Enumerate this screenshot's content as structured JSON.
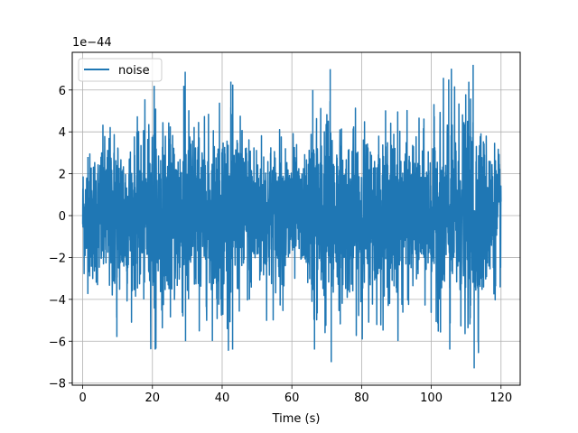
{
  "chart_data": {
    "type": "line",
    "title": "",
    "xlabel": "Time (s)",
    "ylabel": "",
    "y_offset_label": "1e−44",
    "xlim": [
      -3,
      125.5
    ],
    "ylim": [
      -8.1,
      7.8
    ],
    "x_ticks": [
      0,
      20,
      40,
      60,
      80,
      100,
      120
    ],
    "x_tick_labels": [
      "0",
      "20",
      "40",
      "60",
      "80",
      "100",
      "120"
    ],
    "y_ticks": [
      -8,
      -6,
      -4,
      -2,
      0,
      2,
      4,
      6
    ],
    "y_tick_labels": [
      "−8",
      "−6",
      "−4",
      "−2",
      "0",
      "2",
      "4",
      "6"
    ],
    "grid": true,
    "legend": {
      "position": "upper-left",
      "entries": [
        "noise"
      ]
    },
    "series": [
      {
        "name": "noise",
        "color": "#1f77b4",
        "x_range": [
          0,
          120
        ],
        "notable_peaks": [
          {
            "x": 1.5,
            "y": 2.8
          },
          {
            "x": 2.0,
            "y": -2.9
          },
          {
            "x": 9.8,
            "y": -5.8
          },
          {
            "x": 20.5,
            "y": 6.2
          },
          {
            "x": 20.8,
            "y": -6.4
          },
          {
            "x": 29.0,
            "y": 6.2
          },
          {
            "x": 29.5,
            "y": -6.0
          },
          {
            "x": 42.5,
            "y": 6.4
          },
          {
            "x": 43.0,
            "y": -6.4
          },
          {
            "x": 66.0,
            "y": 6.0
          },
          {
            "x": 66.5,
            "y": -6.4
          },
          {
            "x": 71.0,
            "y": 7.0
          },
          {
            "x": 71.3,
            "y": -7.0
          },
          {
            "x": 105.0,
            "y": 6.5
          },
          {
            "x": 105.3,
            "y": -6.4
          },
          {
            "x": 112.0,
            "y": 7.2
          },
          {
            "x": 112.3,
            "y": -7.3
          }
        ],
        "approx_envelope": [
          {
            "x": 0,
            "amp": 2.4
          },
          {
            "x": 5,
            "amp": 3.0
          },
          {
            "x": 10,
            "amp": 3.9
          },
          {
            "x": 15,
            "amp": 3.0
          },
          {
            "x": 20,
            "amp": 4.1
          },
          {
            "x": 25,
            "amp": 3.4
          },
          {
            "x": 30,
            "amp": 4.4
          },
          {
            "x": 35,
            "amp": 3.5
          },
          {
            "x": 40,
            "amp": 4.2
          },
          {
            "x": 45,
            "amp": 3.7
          },
          {
            "x": 50,
            "amp": 3.3
          },
          {
            "x": 55,
            "amp": 3.1
          },
          {
            "x": 60,
            "amp": 3.2
          },
          {
            "x": 63,
            "amp": 1.9
          },
          {
            "x": 66,
            "amp": 4.0
          },
          {
            "x": 70,
            "amp": 4.6
          },
          {
            "x": 75,
            "amp": 3.3
          },
          {
            "x": 80,
            "amp": 3.7
          },
          {
            "x": 85,
            "amp": 3.3
          },
          {
            "x": 90,
            "amp": 3.8
          },
          {
            "x": 95,
            "amp": 3.0
          },
          {
            "x": 100,
            "amp": 3.4
          },
          {
            "x": 105,
            "amp": 4.4
          },
          {
            "x": 110,
            "amp": 4.2
          },
          {
            "x": 112,
            "amp": 4.8
          },
          {
            "x": 115,
            "amp": 3.4
          },
          {
            "x": 120,
            "amp": 2.6
          }
        ]
      }
    ]
  }
}
